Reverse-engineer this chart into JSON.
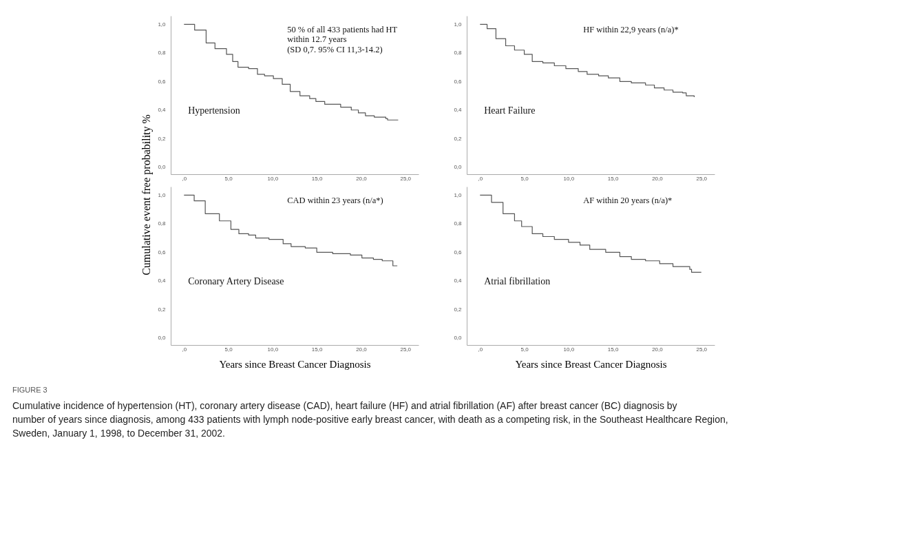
{
  "chart_data": [
    {
      "type": "step",
      "ylabel": "Cumulative event free probability  %",
      "xlim": [
        -1.5,
        26.5
      ],
      "ylim": [
        -0.05,
        1.06
      ],
      "xticks": [
        {
          "value": 0,
          "label": ",0"
        },
        {
          "value": 5,
          "label": "5,0"
        },
        {
          "value": 10,
          "label": "10,0"
        },
        {
          "value": 15,
          "label": "15,0"
        },
        {
          "value": 20,
          "label": "20,0"
        },
        {
          "value": 25,
          "label": "25,0"
        }
      ],
      "yticks": [
        {
          "value": 0,
          "label": "0,0"
        },
        {
          "value": 0.2,
          "label": "0,2"
        },
        {
          "value": 0.4,
          "label": "0,4"
        },
        {
          "value": 0.6,
          "label": "0,6"
        },
        {
          "value": 0.8,
          "label": "0,8"
        },
        {
          "value": 1.0,
          "label": "1,0"
        }
      ],
      "grid": false,
      "line_style": "solid",
      "x": [
        0,
        1.2,
        2.5,
        3.5,
        4.8,
        5.5,
        6.1,
        7.3,
        8.3,
        9.1,
        10.1,
        11.1,
        12.0,
        13.1,
        14.2,
        14.9,
        15.9,
        17.7,
        18.9,
        19.7,
        20.5,
        21.5,
        22.8,
        23.0,
        24.2
      ],
      "series": [
        {
          "color": "#555555",
          "values": [
            1.0,
            0.96,
            0.87,
            0.83,
            0.79,
            0.74,
            0.7,
            0.69,
            0.65,
            0.64,
            0.62,
            0.58,
            0.53,
            0.5,
            0.48,
            0.46,
            0.44,
            0.42,
            0.4,
            0.38,
            0.36,
            0.35,
            0.34,
            0.33,
            0.33
          ]
        }
      ],
      "annotations": [
        "50 % of all 433 patients had HT\nwithin 12.7 years\n(SD 0,7. 95% CI 11,3-14.2)",
        "Hypertension"
      ]
    },
    {
      "type": "step",
      "xlim": [
        -1.5,
        26.5
      ],
      "ylim": [
        -0.05,
        1.06
      ],
      "xticks": [
        {
          "value": 0,
          "label": ",0"
        },
        {
          "value": 5,
          "label": "5,0"
        },
        {
          "value": 10,
          "label": "10,0"
        },
        {
          "value": 15,
          "label": "15,0"
        },
        {
          "value": 20,
          "label": "20,0"
        },
        {
          "value": 25,
          "label": "25,0"
        }
      ],
      "yticks": [
        {
          "value": 0,
          "label": "0,0"
        },
        {
          "value": 0.2,
          "label": "0,2"
        },
        {
          "value": 0.4,
          "label": "0,4"
        },
        {
          "value": 0.6,
          "label": "0,6"
        },
        {
          "value": 0.8,
          "label": "0,8"
        },
        {
          "value": 1.0,
          "label": "1,0"
        }
      ],
      "grid": false,
      "line_style": "solid",
      "x": [
        0,
        0.8,
        1.8,
        2.9,
        3.9,
        5.0,
        5.9,
        7.1,
        8.4,
        9.7,
        11.1,
        12.1,
        13.4,
        14.5,
        15.8,
        17.1,
        18.7,
        19.7,
        20.8,
        21.8,
        22.9,
        23.3,
        24.2
      ],
      "series": [
        {
          "color": "#555555",
          "values": [
            1.0,
            0.97,
            0.9,
            0.85,
            0.82,
            0.79,
            0.74,
            0.73,
            0.71,
            0.69,
            0.67,
            0.65,
            0.64,
            0.625,
            0.6,
            0.59,
            0.575,
            0.555,
            0.54,
            0.525,
            0.52,
            0.5,
            0.49
          ]
        }
      ],
      "annotations": [
        "HF within 22,9 years (n/a)*",
        "Heart Failure"
      ]
    },
    {
      "type": "step",
      "xlabel": "Years since Breast Cancer Diagnosis",
      "xlim": [
        -1.5,
        26.5
      ],
      "ylim": [
        -0.05,
        1.06
      ],
      "xticks": [
        {
          "value": 0,
          "label": ",0"
        },
        {
          "value": 5,
          "label": "5,0"
        },
        {
          "value": 10,
          "label": "10,0"
        },
        {
          "value": 15,
          "label": "15,0"
        },
        {
          "value": 20,
          "label": "20,0"
        },
        {
          "value": 25,
          "label": "25,0"
        }
      ],
      "yticks": [
        {
          "value": 0,
          "label": "0,0"
        },
        {
          "value": 0.2,
          "label": "0,2"
        },
        {
          "value": 0.4,
          "label": "0,4"
        },
        {
          "value": 0.6,
          "label": "0,6"
        },
        {
          "value": 0.8,
          "label": "0,8"
        },
        {
          "value": 1.0,
          "label": "1,0"
        }
      ],
      "grid": false,
      "line_style": "solid",
      "x": [
        0,
        1.15,
        2.4,
        4.0,
        5.3,
        6.2,
        7.3,
        8.1,
        9.6,
        11.2,
        12.1,
        13.7,
        15.0,
        16.8,
        18.8,
        20.1,
        21.4,
        22.4,
        23.5,
        23.6,
        24.1
      ],
      "series": [
        {
          "color": "#555555",
          "values": [
            1.0,
            0.96,
            0.87,
            0.82,
            0.76,
            0.73,
            0.72,
            0.7,
            0.69,
            0.66,
            0.64,
            0.63,
            0.6,
            0.59,
            0.58,
            0.56,
            0.55,
            0.54,
            0.54,
            0.505,
            0.505
          ]
        }
      ],
      "annotations": [
        "CAD within 23 years (n/a*)",
        "Coronary Artery Disease"
      ]
    },
    {
      "type": "step",
      "xlabel": "Years since Breast Cancer Diagnosis",
      "xlim": [
        -1.5,
        26.5
      ],
      "ylim": [
        -0.05,
        1.06
      ],
      "xticks": [
        {
          "value": 0,
          "label": ",0"
        },
        {
          "value": 5,
          "label": "5,0"
        },
        {
          "value": 10,
          "label": "10,0"
        },
        {
          "value": 15,
          "label": "15,0"
        },
        {
          "value": 20,
          "label": "20,0"
        },
        {
          "value": 25,
          "label": "25,0"
        }
      ],
      "yticks": [
        {
          "value": 0,
          "label": "0,0"
        },
        {
          "value": 0.2,
          "label": "0,2"
        },
        {
          "value": 0.4,
          "label": "0,4"
        },
        {
          "value": 0.6,
          "label": "0,6"
        },
        {
          "value": 0.8,
          "label": "0,8"
        },
        {
          "value": 1.0,
          "label": "1,0"
        }
      ],
      "grid": false,
      "line_style": "solid",
      "x": [
        0,
        1.3,
        2.6,
        3.9,
        4.7,
        5.9,
        7.1,
        8.4,
        10.0,
        11.3,
        12.4,
        14.2,
        15.8,
        17.1,
        18.7,
        20.3,
        21.8,
        23.7,
        23.9,
        25.0
      ],
      "series": [
        {
          "color": "#555555",
          "values": [
            1.0,
            0.95,
            0.87,
            0.82,
            0.78,
            0.73,
            0.71,
            0.69,
            0.67,
            0.65,
            0.62,
            0.6,
            0.57,
            0.55,
            0.54,
            0.52,
            0.5,
            0.48,
            0.46,
            0.46
          ]
        }
      ],
      "annotations": [
        "AF within 20 years (n/a)*",
        "Atrial fibrillation",
        "FIGURE 3",
        "Cumulative incidence of hypertension (HT), coronary artery disease (CAD), heart failure (HF) and atrial fibrillation (AF) after breast cancer (BC) diagnosis by number of years since diagnosis, among 433 patients with lymph node-positive early breast cancer, with death as a competing risk, in the Southeast Healthcare Region, Sweden, January 1, 1998, to December 31, 2002."
      ]
    }
  ]
}
